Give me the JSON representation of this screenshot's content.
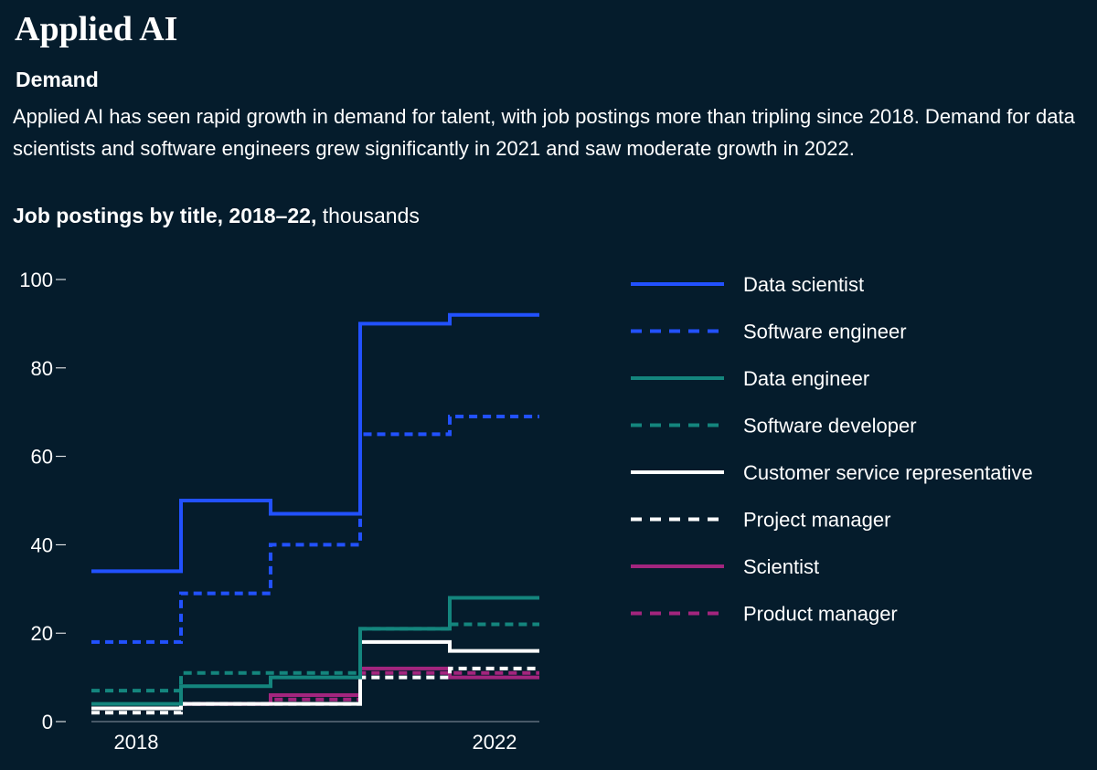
{
  "header": {
    "title": "Applied AI",
    "subtitle": "Demand",
    "description": "Applied AI has seen rapid growth in demand for talent, with job postings more than tripling since 2018. Demand for data scientists and software engineers grew significantly in 2021 and saw moderate growth in 2022."
  },
  "chart_data": {
    "type": "line",
    "step": true,
    "title_bold": "Job postings by title, 2018–22,",
    "title_unit": " thousands",
    "x": [
      2018,
      2019,
      2020,
      2021,
      2022
    ],
    "x_tick_labels": [
      {
        "x": 2018,
        "label": "2018"
      },
      {
        "x": 2022,
        "label": "2022"
      }
    ],
    "y_ticks": [
      0,
      20,
      40,
      60,
      80,
      100
    ],
    "ylim": [
      0,
      100
    ],
    "legend_position": "right",
    "series": [
      {
        "name": "Data scientist",
        "color": "#2251ff",
        "dashed": false,
        "values": [
          34,
          50,
          47,
          90,
          92
        ]
      },
      {
        "name": "Software engineer",
        "color": "#2251ff",
        "dashed": true,
        "values": [
          18,
          29,
          40,
          65,
          69
        ]
      },
      {
        "name": "Data engineer",
        "color": "#14857d",
        "dashed": false,
        "values": [
          4,
          8,
          10,
          21,
          28
        ]
      },
      {
        "name": "Software developer",
        "color": "#14857d",
        "dashed": true,
        "values": [
          7,
          11,
          11,
          21,
          22
        ]
      },
      {
        "name": "Customer service representative",
        "color": "#ffffff",
        "dashed": false,
        "values": [
          3,
          4,
          4,
          18,
          16
        ]
      },
      {
        "name": "Project manager",
        "color": "#ffffff",
        "dashed": true,
        "values": [
          2,
          4,
          4,
          10,
          12
        ]
      },
      {
        "name": "Scientist",
        "color": "#a3257e",
        "dashed": false,
        "values": [
          3,
          4,
          6,
          12,
          10
        ]
      },
      {
        "name": "Product manager",
        "color": "#a3257e",
        "dashed": true,
        "values": [
          3,
          4,
          5,
          11,
          11
        ]
      }
    ]
  }
}
